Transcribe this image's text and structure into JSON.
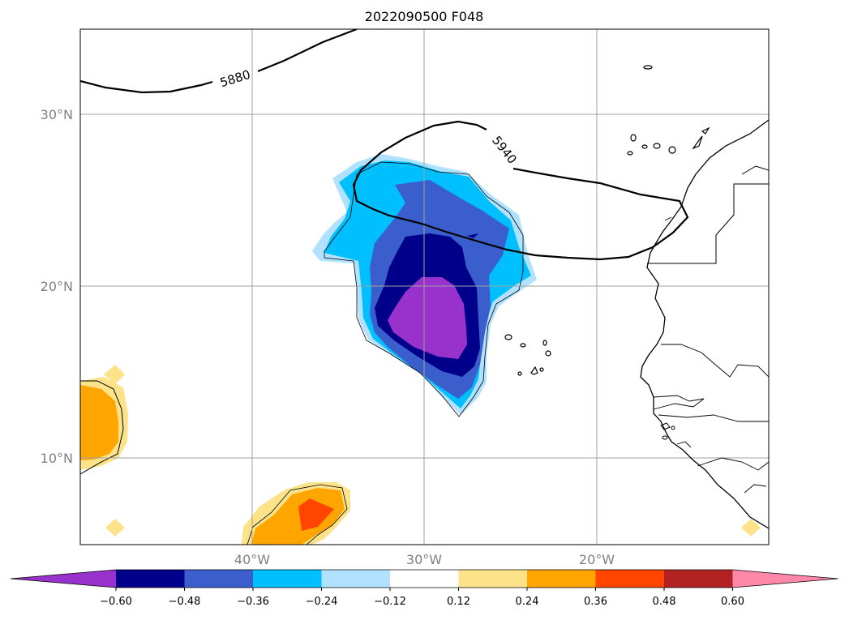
{
  "chart_data": {
    "type": "heatmap",
    "title": "2022090500 F048",
    "map": {
      "lon_range": [
        -50,
        -10
      ],
      "lat_range": [
        5,
        35
      ],
      "lat_ticks": [
        "30°N",
        "20°N",
        "10°N"
      ],
      "lon_ticks": [
        "40°W",
        "30°W",
        "20°W"
      ],
      "grid": true,
      "coastlines": true
    },
    "contour_lines": [
      {
        "label": "5880"
      },
      {
        "label": "5940"
      }
    ],
    "colorbar": {
      "orientation": "horizontal",
      "extend": "both",
      "ticks": [
        "−0.60",
        "−0.48",
        "−0.36",
        "−0.24",
        "−0.12",
        "0.12",
        "0.24",
        "0.36",
        "0.48",
        "0.60"
      ],
      "colors": [
        "#9932cc",
        "#00008b",
        "#3a5fcd",
        "#00bfff",
        "#b0e2ff",
        "#ffffff",
        "#fce38a",
        "#ffa500",
        "#ff4500",
        "#b22222",
        "#ff88aa"
      ]
    }
  }
}
